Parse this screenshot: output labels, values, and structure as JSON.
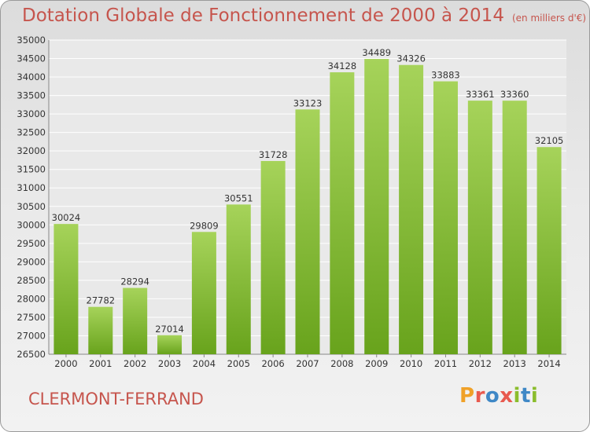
{
  "header": {
    "title": "Dotation Globale de Fonctionnement de 2000 à 2014",
    "unit": "(en milliers d'€)"
  },
  "footer": {
    "city": "CLERMONT-FERRAND",
    "logo": "Proxiti"
  },
  "colors": {
    "bar_light": "#a6d35a",
    "bar_dark": "#68a31c",
    "title": "#c6554d"
  },
  "chart_data": {
    "type": "bar",
    "title": "Dotation Globale de Fonctionnement de 2000 à 2014",
    "subtitle": "(en milliers d'€)",
    "categories": [
      "2000",
      "2001",
      "2002",
      "2003",
      "2004",
      "2005",
      "2006",
      "2007",
      "2008",
      "2009",
      "2010",
      "2011",
      "2012",
      "2013",
      "2014"
    ],
    "values": [
      30024,
      27782,
      28294,
      27014,
      29809,
      30551,
      31728,
      33123,
      34128,
      34489,
      34326,
      33883,
      33361,
      33360,
      32105
    ],
    "xlabel": "",
    "ylabel": "",
    "ylim": [
      26500,
      35000
    ],
    "yticks": [
      26500,
      27000,
      27500,
      28000,
      28500,
      29000,
      29500,
      30000,
      30500,
      31000,
      31500,
      32000,
      32500,
      33000,
      33500,
      34000,
      34500,
      35000
    ],
    "grid": true,
    "legend": "none",
    "data_labels": true
  }
}
